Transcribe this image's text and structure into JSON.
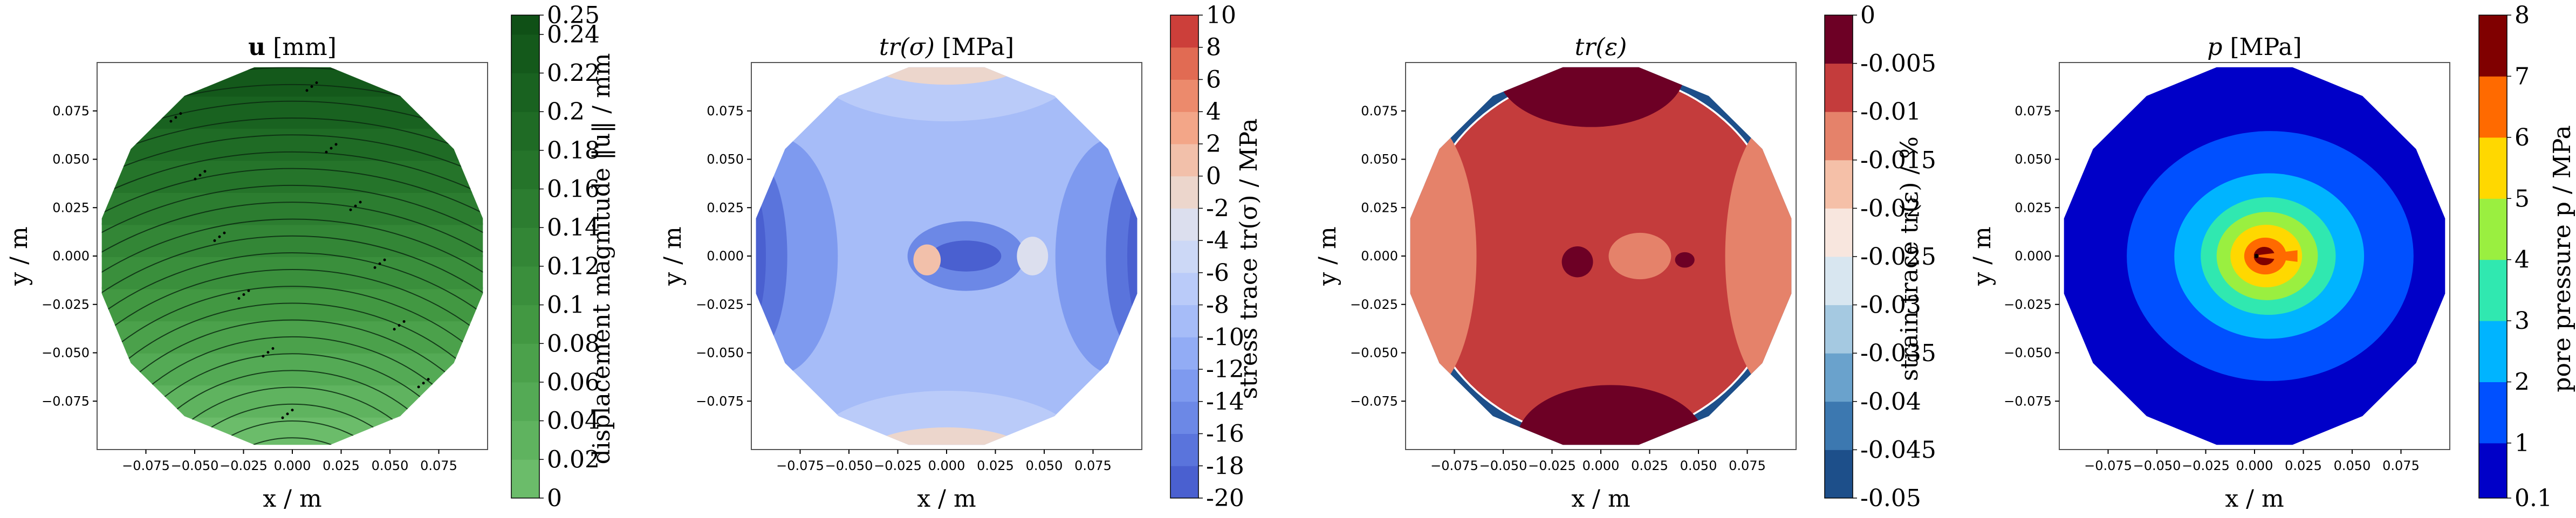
{
  "chart_data": [
    {
      "type": "heatmap",
      "subtype": "filled-contour-with-streamlines",
      "title_bold": "u",
      "title_rest": " [mm]",
      "xlabel": "x / m",
      "ylabel": "y / m",
      "xticks": [
        "−0.075",
        "−0.050",
        "−0.025",
        "0.000",
        "0.025",
        "0.050",
        "0.075"
      ],
      "yticks": [
        "0.075",
        "0.050",
        "0.025",
        "0.000",
        "−0.025",
        "−0.050",
        "−0.075"
      ],
      "xlim": [
        -0.1,
        0.1
      ],
      "ylim": [
        -0.1,
        0.1
      ],
      "colorbar_label": "displacement magnitude ‖u‖ / mm",
      "colorbar_ticks": [
        "0.25",
        "0.24",
        "0.22",
        "0.2",
        "0.18",
        "0.16",
        "0.14",
        "0.12",
        "0.1",
        "0.08",
        "0.06",
        "0.04",
        "0.02",
        "0"
      ],
      "colorbar_values": [
        0,
        0.02,
        0.04,
        0.06,
        0.08,
        0.1,
        0.12,
        0.14,
        0.16,
        0.18,
        0.2,
        0.22,
        0.24,
        0.25
      ],
      "colorbar_colors": [
        "#6bbc6a",
        "#5fb35f",
        "#54aa55",
        "#4ba14b",
        "#429842",
        "#3a8f3c",
        "#338636",
        "#2c7d30",
        "#25742a",
        "#1f6b25",
        "#196220",
        "#14591b",
        "#0f5016",
        "#0a4712"
      ],
      "field": "displacement magnitude increasing from bottom (≈0) to top (≈0.25)"
    },
    {
      "type": "heatmap",
      "subtype": "filled-contour",
      "title_math": "tr(σ)",
      "title_rest": " [MPa]",
      "xlabel": "x / m",
      "ylabel": "y / m",
      "xticks": [
        "−0.075",
        "−0.050",
        "−0.025",
        "0.000",
        "0.025",
        "0.050",
        "0.075"
      ],
      "yticks": [
        "0.075",
        "0.050",
        "0.025",
        "0.000",
        "−0.025",
        "−0.050",
        "−0.075"
      ],
      "xlim": [
        -0.1,
        0.1
      ],
      "ylim": [
        -0.1,
        0.1
      ],
      "colorbar_label": "stress trace tr(σ) / MPa",
      "colorbar_ticks": [
        "10",
        "8",
        "6",
        "4",
        "2",
        "0",
        "-2",
        "-4",
        "-6",
        "-8",
        "-10",
        "-12",
        "-14",
        "-16",
        "-18",
        "-20"
      ],
      "colorbar_values": [
        -20,
        -18,
        -16,
        -14,
        -12,
        -10,
        -8,
        -6,
        -4,
        -2,
        0,
        2,
        4,
        6,
        8,
        10
      ],
      "colorbar_colors": [
        "#4a60d0",
        "#5a74dc",
        "#6c88e6",
        "#7e9aef",
        "#92acf5",
        "#a6bcf8",
        "#bacbf9",
        "#ccd8f6",
        "#dcdfee",
        "#ecd6cc",
        "#f2c0aa",
        "#f3a688",
        "#ec8a6c",
        "#e16b53",
        "#cc3f3a",
        "#b40426"
      ],
      "field": "mostly −8 to −14 MPa, lower (−16 to −20) at left/right edges, positive near top/bottom edges and around the wellbore"
    },
    {
      "type": "heatmap",
      "subtype": "filled-contour",
      "title_math": "tr(ε)",
      "title_rest": "",
      "xlabel": "x / m",
      "ylabel": "y / m",
      "xticks": [
        "−0.075",
        "−0.050",
        "−0.025",
        "0.000",
        "0.025",
        "0.050",
        "0.075"
      ],
      "yticks": [
        "0.075",
        "0.050",
        "0.025",
        "0.000",
        "−0.025",
        "−0.050",
        "−0.075"
      ],
      "xlim": [
        -0.1,
        0.1
      ],
      "ylim": [
        -0.1,
        0.1
      ],
      "colorbar_label": "strain trace tr(ε) / %",
      "colorbar_ticks": [
        "0",
        "-0.005",
        "-0.01",
        "-0.015",
        "-0.02",
        "-0.025",
        "-0.03",
        "-0.035",
        "-0.04",
        "-0.045",
        "-0.05"
      ],
      "colorbar_values": [
        -0.05,
        -0.045,
        -0.04,
        -0.035,
        -0.03,
        -0.025,
        -0.02,
        -0.015,
        -0.01,
        -0.005,
        0
      ],
      "colorbar_colors": [
        "#1d4f8a",
        "#3c78b0",
        "#6aa2cc",
        "#a5c9e1",
        "#d8e6f0",
        "#f8e6de",
        "#f5c0a8",
        "#e5826a",
        "#c43c3c",
        "#6d0025"
      ],
      "field": "mostly −0.005 to −0.01 %, near 0 at top/bottom edges, −0.015 at left/right edges, −0.05 along outer ring"
    },
    {
      "type": "heatmap",
      "subtype": "filled-contour",
      "title_math": "p",
      "title_rest": " [MPa]",
      "xlabel": "x / m",
      "ylabel": "y / m",
      "xticks": [
        "−0.075",
        "−0.050",
        "−0.025",
        "0.000",
        "0.025",
        "0.050",
        "0.075"
      ],
      "yticks": [
        "0.075",
        "0.050",
        "0.025",
        "0.000",
        "−0.025",
        "−0.050",
        "−0.075"
      ],
      "xlim": [
        -0.1,
        0.1
      ],
      "ylim": [
        -0.1,
        0.1
      ],
      "colorbar_label": "pore pressure p / MPa",
      "colorbar_ticks": [
        "8",
        "7",
        "6",
        "5",
        "4",
        "3",
        "2",
        "1",
        "0.1"
      ],
      "colorbar_values": [
        0.1,
        1,
        2,
        3,
        4,
        5,
        6,
        7,
        8
      ],
      "colorbar_colors": [
        "#0000c8",
        "#0050ff",
        "#00b4ff",
        "#30e8b0",
        "#9aef40",
        "#ffd800",
        "#ff6a00",
        "#800000"
      ],
      "field": "concentric pressure rings around injection point near (0.005, 0), max ≈8 MPa at centre, 0.1–1 MPa at rim"
    }
  ]
}
